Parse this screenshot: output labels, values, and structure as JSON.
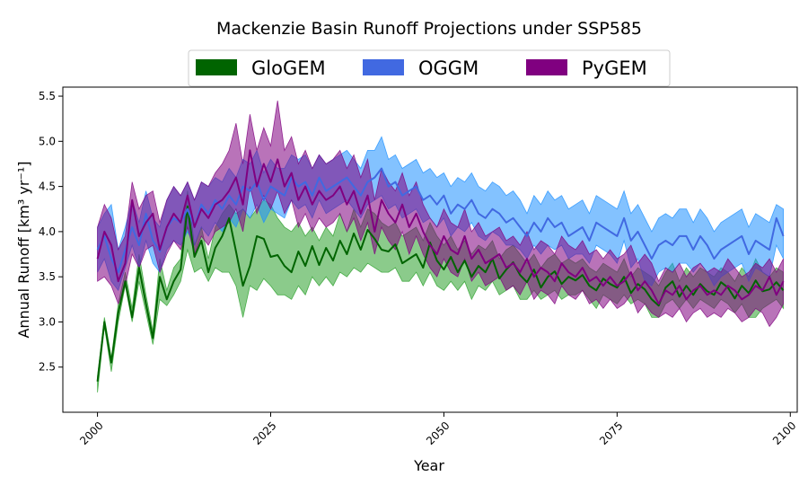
{
  "chart_data": {
    "type": "line",
    "title": "Mackenzie Basin Runoff Projections under SSP585",
    "xlabel": "Year",
    "ylabel": "Annual Runoff [km³ yr⁻¹]",
    "xlim": [
      1995,
      2101
    ],
    "ylim": [
      2.0,
      5.6
    ],
    "xticks": [
      2000,
      2025,
      2050,
      2075,
      2100
    ],
    "yticks": [
      2.5,
      3.0,
      3.5,
      4.0,
      4.5,
      5.0,
      5.5
    ],
    "legend_position": "top-center",
    "grid": false,
    "series": [
      {
        "name": "GloGEM",
        "color": "#006400",
        "band_color": "#2ca02c",
        "x": [
          2000,
          2001,
          2002,
          2003,
          2004,
          2005,
          2006,
          2007,
          2008,
          2009,
          2010,
          2011,
          2012,
          2013,
          2014,
          2015,
          2016,
          2017,
          2018,
          2019,
          2020,
          2021,
          2022,
          2023,
          2024,
          2025,
          2026,
          2027,
          2028,
          2029,
          2030,
          2031,
          2032,
          2033,
          2034,
          2035,
          2036,
          2037,
          2038,
          2039,
          2040,
          2041,
          2042,
          2043,
          2044,
          2045,
          2046,
          2047,
          2048,
          2049,
          2050,
          2051,
          2052,
          2053,
          2054,
          2055,
          2056,
          2057,
          2058,
          2059,
          2060,
          2061,
          2062,
          2063,
          2064,
          2065,
          2066,
          2067,
          2068,
          2069,
          2070,
          2071,
          2072,
          2073,
          2074,
          2075,
          2076,
          2077,
          2078,
          2079,
          2080,
          2081,
          2082,
          2083,
          2084,
          2085,
          2086,
          2087,
          2088,
          2089,
          2090,
          2091,
          2092,
          2093,
          2094,
          2095,
          2096,
          2097,
          2098,
          2099
        ],
        "mean": [
          2.34,
          3.0,
          2.55,
          3.1,
          3.45,
          3.05,
          3.6,
          3.2,
          2.82,
          3.5,
          3.25,
          3.45,
          3.58,
          4.28,
          3.72,
          3.9,
          3.55,
          3.82,
          3.95,
          4.15,
          3.78,
          3.4,
          3.62,
          3.95,
          3.92,
          3.72,
          3.74,
          3.62,
          3.55,
          3.78,
          3.62,
          3.84,
          3.63,
          3.82,
          3.68,
          3.9,
          3.75,
          3.98,
          3.8,
          4.02,
          3.92,
          3.8,
          3.78,
          3.86,
          3.65,
          3.7,
          3.75,
          3.6,
          3.88,
          3.68,
          3.58,
          3.72,
          3.55,
          3.68,
          3.5,
          3.62,
          3.55,
          3.7,
          3.48,
          3.58,
          3.66,
          3.52,
          3.44,
          3.58,
          3.38,
          3.5,
          3.56,
          3.42,
          3.5,
          3.46,
          3.52,
          3.4,
          3.35,
          3.48,
          3.42,
          3.38,
          3.5,
          3.32,
          3.42,
          3.36,
          3.25,
          3.18,
          3.38,
          3.45,
          3.28,
          3.4,
          3.3,
          3.42,
          3.34,
          3.3,
          3.44,
          3.38,
          3.26,
          3.4,
          3.32,
          3.46,
          3.34,
          3.36,
          3.44,
          3.35
        ],
        "lower": [
          2.22,
          2.95,
          2.45,
          3.0,
          3.4,
          3.0,
          3.45,
          3.1,
          2.75,
          3.25,
          3.18,
          3.3,
          3.45,
          3.8,
          3.55,
          3.6,
          3.45,
          3.6,
          3.55,
          3.55,
          3.4,
          3.05,
          3.4,
          3.35,
          3.48,
          3.4,
          3.3,
          3.3,
          3.25,
          3.4,
          3.3,
          3.5,
          3.4,
          3.5,
          3.4,
          3.55,
          3.5,
          3.6,
          3.55,
          3.65,
          3.6,
          3.55,
          3.55,
          3.6,
          3.45,
          3.45,
          3.55,
          3.4,
          3.55,
          3.4,
          3.35,
          3.45,
          3.35,
          3.45,
          3.25,
          3.4,
          3.35,
          3.45,
          3.3,
          3.35,
          3.4,
          3.25,
          3.25,
          3.35,
          3.25,
          3.3,
          3.35,
          3.25,
          3.3,
          3.3,
          3.35,
          3.25,
          3.15,
          3.3,
          3.25,
          3.2,
          3.3,
          3.2,
          3.25,
          3.2,
          3.05,
          3.05,
          3.2,
          3.25,
          3.15,
          3.25,
          3.15,
          3.25,
          3.2,
          3.15,
          3.25,
          3.2,
          3.1,
          3.2,
          3.05,
          3.05,
          3.15,
          3.2,
          3.25,
          3.15
        ],
        "upper": [
          2.4,
          3.05,
          2.6,
          3.2,
          3.55,
          3.15,
          3.75,
          3.3,
          2.9,
          3.7,
          3.35,
          3.6,
          3.7,
          4.45,
          3.85,
          4.05,
          3.7,
          4.05,
          4.2,
          4.3,
          4.2,
          4.25,
          4.15,
          4.25,
          4.35,
          4.3,
          4.15,
          4.05,
          4.0,
          4.1,
          3.95,
          4.05,
          3.9,
          4.05,
          3.95,
          4.2,
          4.0,
          4.25,
          4.05,
          4.25,
          4.2,
          4.1,
          4.05,
          4.1,
          3.95,
          4.0,
          4.05,
          3.9,
          4.1,
          3.95,
          3.85,
          3.95,
          3.8,
          3.9,
          3.75,
          3.85,
          3.8,
          3.9,
          3.7,
          3.8,
          3.85,
          3.75,
          3.65,
          3.75,
          3.6,
          3.7,
          3.75,
          3.65,
          3.7,
          3.65,
          3.7,
          3.6,
          3.55,
          3.65,
          3.6,
          3.55,
          3.7,
          3.5,
          3.6,
          3.55,
          3.5,
          3.4,
          3.55,
          3.65,
          3.45,
          3.6,
          3.5,
          3.6,
          3.55,
          3.5,
          3.6,
          3.55,
          3.45,
          3.6,
          3.5,
          3.7,
          3.55,
          3.5,
          3.6,
          3.55
        ]
      },
      {
        "name": "OGGM",
        "color": "#4169e1",
        "band_color": "#1e90ff",
        "x": [
          2000,
          2001,
          2002,
          2003,
          2004,
          2005,
          2006,
          2007,
          2008,
          2009,
          2010,
          2011,
          2012,
          2013,
          2014,
          2015,
          2016,
          2017,
          2018,
          2019,
          2020,
          2021,
          2022,
          2023,
          2024,
          2025,
          2026,
          2027,
          2028,
          2029,
          2030,
          2031,
          2032,
          2033,
          2034,
          2035,
          2036,
          2037,
          2038,
          2039,
          2040,
          2041,
          2042,
          2043,
          2044,
          2045,
          2046,
          2047,
          2048,
          2049,
          2050,
          2051,
          2052,
          2053,
          2054,
          2055,
          2056,
          2057,
          2058,
          2059,
          2060,
          2061,
          2062,
          2063,
          2064,
          2065,
          2066,
          2067,
          2068,
          2069,
          2070,
          2071,
          2072,
          2073,
          2074,
          2075,
          2076,
          2077,
          2078,
          2079,
          2080,
          2081,
          2082,
          2083,
          2084,
          2085,
          2086,
          2087,
          2088,
          2089,
          2090,
          2091,
          2092,
          2093,
          2094,
          2095,
          2096,
          2097,
          2098,
          2099
        ],
        "mean": [
          3.8,
          3.95,
          3.7,
          3.55,
          3.8,
          4.05,
          3.85,
          4.2,
          3.9,
          3.78,
          4.05,
          4.15,
          4.1,
          4.25,
          4.05,
          4.3,
          4.2,
          4.35,
          4.25,
          4.4,
          4.3,
          4.5,
          4.45,
          4.55,
          4.35,
          4.5,
          4.45,
          4.4,
          4.6,
          4.5,
          4.55,
          4.4,
          4.6,
          4.45,
          4.5,
          4.55,
          4.6,
          4.5,
          4.4,
          4.55,
          4.6,
          4.7,
          4.5,
          4.55,
          4.4,
          4.45,
          4.5,
          4.35,
          4.4,
          4.3,
          4.4,
          4.2,
          4.3,
          4.25,
          4.35,
          4.2,
          4.15,
          4.25,
          4.2,
          4.1,
          4.15,
          4.05,
          3.95,
          4.1,
          4.0,
          4.15,
          4.05,
          4.1,
          3.95,
          4.0,
          4.05,
          3.9,
          4.1,
          4.05,
          4.0,
          3.95,
          4.15,
          3.9,
          4.0,
          3.85,
          3.7,
          3.85,
          3.9,
          3.85,
          3.95,
          3.95,
          3.8,
          3.95,
          3.85,
          3.7,
          3.8,
          3.85,
          3.9,
          3.95,
          3.75,
          3.9,
          3.85,
          3.8,
          4.15,
          3.95
        ],
        "lower": [
          3.55,
          3.7,
          3.45,
          3.35,
          3.6,
          3.85,
          3.6,
          3.9,
          3.65,
          3.55,
          3.8,
          3.9,
          3.85,
          4.0,
          3.85,
          4.05,
          3.95,
          4.1,
          4.0,
          4.15,
          4.05,
          4.25,
          4.15,
          4.3,
          4.1,
          4.25,
          4.2,
          4.15,
          4.35,
          4.25,
          4.3,
          4.15,
          4.35,
          4.2,
          4.25,
          4.3,
          4.35,
          4.25,
          4.15,
          4.3,
          4.35,
          4.4,
          4.25,
          4.3,
          4.15,
          4.2,
          4.25,
          4.1,
          4.15,
          4.05,
          4.15,
          3.95,
          4.05,
          4.0,
          4.1,
          3.95,
          3.9,
          4.0,
          3.95,
          3.85,
          3.85,
          3.8,
          3.7,
          3.85,
          3.75,
          3.85,
          3.8,
          3.85,
          3.7,
          3.75,
          3.75,
          3.65,
          3.85,
          3.8,
          3.75,
          3.65,
          3.9,
          3.6,
          3.7,
          3.45,
          3.4,
          3.55,
          3.6,
          3.55,
          3.65,
          3.65,
          3.55,
          3.65,
          3.55,
          3.4,
          3.5,
          3.55,
          3.6,
          3.65,
          3.45,
          3.6,
          3.55,
          3.5,
          3.85,
          3.7
        ],
        "upper": [
          4.05,
          4.2,
          4.3,
          3.8,
          4.05,
          4.35,
          4.1,
          4.45,
          4.15,
          4.05,
          4.35,
          4.5,
          4.4,
          4.55,
          4.35,
          4.55,
          4.5,
          4.6,
          4.55,
          4.7,
          4.6,
          4.8,
          4.75,
          4.9,
          4.65,
          4.8,
          4.7,
          4.7,
          4.85,
          4.8,
          4.85,
          4.7,
          4.85,
          4.75,
          4.8,
          4.85,
          4.9,
          4.8,
          4.7,
          4.9,
          4.9,
          5.05,
          4.8,
          4.85,
          4.7,
          4.75,
          4.8,
          4.65,
          4.7,
          4.6,
          4.65,
          4.5,
          4.6,
          4.55,
          4.65,
          4.5,
          4.45,
          4.55,
          4.5,
          4.4,
          4.45,
          4.35,
          4.2,
          4.4,
          4.3,
          4.45,
          4.35,
          4.4,
          4.25,
          4.3,
          4.35,
          4.2,
          4.4,
          4.35,
          4.3,
          4.25,
          4.45,
          4.2,
          4.3,
          4.15,
          4.0,
          4.15,
          4.2,
          4.15,
          4.25,
          4.25,
          4.1,
          4.25,
          4.15,
          4.0,
          4.1,
          4.15,
          4.2,
          4.25,
          4.05,
          4.2,
          4.15,
          4.1,
          4.3,
          4.25
        ]
      },
      {
        "name": "PyGEM",
        "color": "#800080",
        "band_color": "#800080",
        "x": [
          2000,
          2001,
          2002,
          2003,
          2004,
          2005,
          2006,
          2007,
          2008,
          2009,
          2010,
          2011,
          2012,
          2013,
          2014,
          2015,
          2016,
          2017,
          2018,
          2019,
          2020,
          2021,
          2022,
          2023,
          2024,
          2025,
          2026,
          2027,
          2028,
          2029,
          2030,
          2031,
          2032,
          2033,
          2034,
          2035,
          2036,
          2037,
          2038,
          2039,
          2040,
          2041,
          2042,
          2043,
          2044,
          2045,
          2046,
          2047,
          2048,
          2049,
          2050,
          2051,
          2052,
          2053,
          2054,
          2055,
          2056,
          2057,
          2058,
          2059,
          2060,
          2061,
          2062,
          2063,
          2064,
          2065,
          2066,
          2067,
          2068,
          2069,
          2070,
          2071,
          2072,
          2073,
          2074,
          2075,
          2076,
          2077,
          2078,
          2079,
          2080,
          2081,
          2082,
          2083,
          2084,
          2085,
          2086,
          2087,
          2088,
          2089,
          2090,
          2091,
          2092,
          2093,
          2094,
          2095,
          2096,
          2097,
          2098,
          2099
        ],
        "mean": [
          3.7,
          4.0,
          3.85,
          3.45,
          3.65,
          4.35,
          3.95,
          4.1,
          4.2,
          3.8,
          4.05,
          4.2,
          4.1,
          4.4,
          4.05,
          4.25,
          4.15,
          4.3,
          4.35,
          4.45,
          4.6,
          4.3,
          4.9,
          4.5,
          4.75,
          4.55,
          4.8,
          4.5,
          4.65,
          4.35,
          4.5,
          4.3,
          4.45,
          4.35,
          4.4,
          4.5,
          4.3,
          4.45,
          4.2,
          4.4,
          4.0,
          4.35,
          4.2,
          4.1,
          4.3,
          4.05,
          4.2,
          4.0,
          3.85,
          3.75,
          3.95,
          3.8,
          3.75,
          3.95,
          3.7,
          3.8,
          3.65,
          3.7,
          3.75,
          3.6,
          3.65,
          3.55,
          3.7,
          3.5,
          3.6,
          3.55,
          3.45,
          3.65,
          3.55,
          3.5,
          3.6,
          3.45,
          3.5,
          3.4,
          3.5,
          3.4,
          3.45,
          3.55,
          3.35,
          3.45,
          3.35,
          3.2,
          3.35,
          3.3,
          3.4,
          3.25,
          3.35,
          3.4,
          3.3,
          3.35,
          3.3,
          3.4,
          3.35,
          3.25,
          3.3,
          3.4,
          3.35,
          3.5,
          3.3,
          3.45
        ],
        "lower": [
          3.45,
          3.5,
          3.4,
          3.2,
          3.4,
          3.75,
          3.6,
          3.8,
          3.85,
          3.55,
          3.75,
          3.9,
          3.8,
          4.05,
          3.75,
          3.95,
          3.85,
          4.0,
          4.05,
          4.1,
          4.25,
          4.0,
          4.5,
          4.2,
          4.4,
          4.25,
          4.45,
          4.2,
          4.35,
          4.05,
          4.2,
          4.0,
          4.15,
          4.05,
          4.1,
          4.2,
          4.0,
          4.15,
          3.9,
          4.1,
          3.75,
          4.05,
          3.9,
          3.8,
          4.0,
          3.75,
          3.95,
          3.75,
          3.6,
          3.5,
          3.7,
          3.55,
          3.5,
          3.7,
          3.45,
          3.55,
          3.4,
          3.45,
          3.5,
          3.35,
          3.4,
          3.3,
          3.45,
          3.25,
          3.35,
          3.3,
          3.2,
          3.4,
          3.3,
          3.25,
          3.35,
          3.2,
          3.25,
          3.15,
          3.25,
          3.15,
          3.2,
          3.3,
          3.1,
          3.2,
          3.1,
          3.05,
          3.1,
          3.05,
          3.15,
          3.0,
          3.1,
          3.15,
          3.05,
          3.1,
          3.05,
          3.15,
          3.1,
          3.0,
          3.05,
          3.15,
          3.1,
          2.95,
          3.05,
          3.2
        ],
        "upper": [
          4.05,
          4.3,
          4.15,
          3.8,
          3.95,
          4.55,
          4.25,
          4.4,
          4.45,
          4.1,
          4.35,
          4.5,
          4.4,
          4.55,
          4.35,
          4.55,
          4.5,
          4.65,
          4.75,
          4.9,
          5.2,
          4.75,
          5.3,
          4.9,
          5.15,
          4.95,
          5.45,
          4.9,
          5.05,
          4.75,
          4.9,
          4.7,
          4.85,
          4.75,
          4.8,
          4.9,
          4.7,
          4.85,
          4.6,
          4.8,
          4.35,
          4.7,
          4.55,
          4.45,
          4.65,
          4.4,
          4.55,
          4.3,
          4.15,
          4.05,
          4.25,
          4.1,
          4.05,
          4.25,
          4.0,
          4.1,
          3.95,
          4.0,
          4.05,
          3.9,
          3.95,
          3.85,
          4.0,
          3.8,
          3.9,
          3.85,
          3.75,
          3.95,
          3.85,
          3.8,
          3.9,
          3.75,
          3.8,
          3.7,
          3.8,
          3.7,
          3.75,
          3.85,
          3.65,
          3.75,
          3.65,
          3.45,
          3.6,
          3.55,
          3.65,
          3.5,
          3.6,
          3.65,
          3.55,
          3.6,
          3.55,
          3.7,
          3.6,
          3.5,
          3.55,
          3.65,
          3.6,
          3.7,
          3.55,
          3.7
        ]
      }
    ]
  }
}
